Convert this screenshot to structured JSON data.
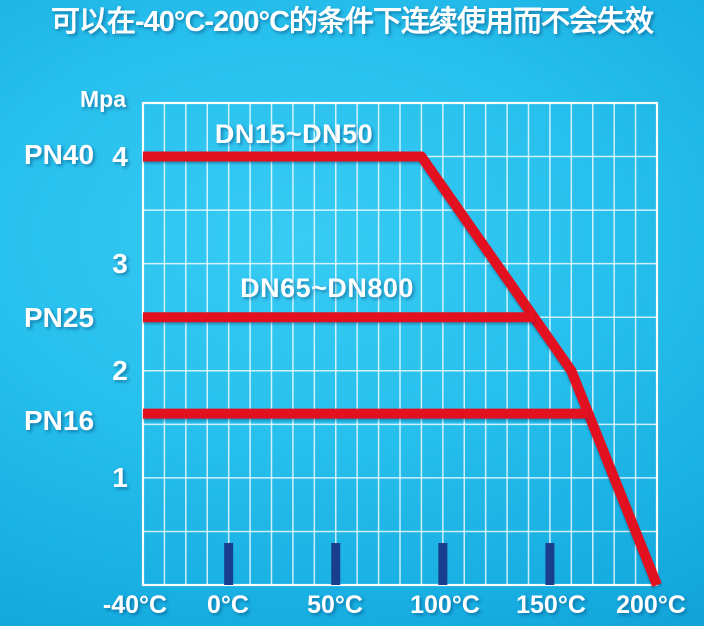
{
  "title": "可以在-40°C-200°C的条件下连续使用而不会失效",
  "chart_data": {
    "type": "line",
    "title": "可以在-40°C-200°C的条件下连续使用而不会失效",
    "xlabel": "",
    "ylabel": "Mpa",
    "xlim": [
      -40,
      200
    ],
    "ylim": [
      0,
      4.5
    ],
    "grid": true,
    "grid_step_x": 10,
    "grid_step_y": 0.5,
    "x_tick_labels": [
      "-40°C",
      "0°C",
      "50°C",
      "100°C",
      "150°C",
      "200°C"
    ],
    "x_tick_values": [
      -40,
      0,
      50,
      100,
      150,
      200
    ],
    "x_tick_marks": [
      0,
      50,
      100,
      150
    ],
    "y_tick_labels": [
      "4",
      "3",
      "2",
      "1"
    ],
    "y_tick_values": [
      4,
      3,
      2,
      1
    ],
    "pressure_class_labels": [
      {
        "text": "PN40",
        "value": 4.0
      },
      {
        "text": "PN25",
        "value": 2.5
      },
      {
        "text": "PN16",
        "value": 1.6
      }
    ],
    "series": [
      {
        "name": "DN15~DN50",
        "points": [
          [
            -40,
            4.0
          ],
          [
            90,
            4.0
          ],
          [
            160,
            2.0
          ],
          [
            200,
            0.0
          ]
        ]
      },
      {
        "name": "DN65~DN800",
        "points": [
          [
            -40,
            2.5
          ],
          [
            143,
            2.5
          ]
        ]
      },
      {
        "name": "PN16-line",
        "points": [
          [
            -40,
            1.6
          ],
          [
            168,
            1.6
          ]
        ]
      }
    ],
    "colors": {
      "line": "#e3101f",
      "grid": "#ffffff",
      "tick_bar": "#1a3e8e",
      "text": "#ffffff",
      "background_center": "#38ccf4",
      "background_edge": "#0d90c6"
    }
  }
}
